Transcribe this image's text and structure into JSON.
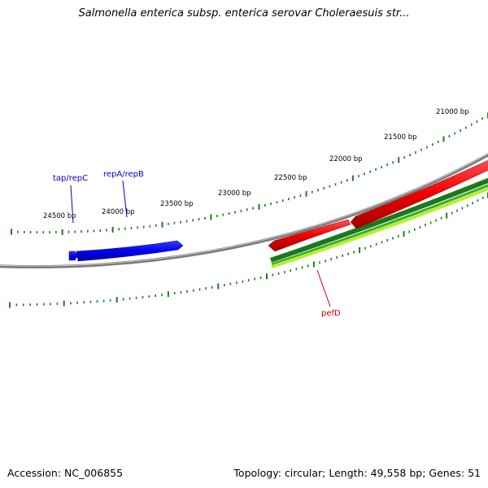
{
  "title": "Salmonella enterica subsp. enterica serovar Choleraesuis str...",
  "footer": {
    "accession": "Accession: NC_006855",
    "summary": "Topology: circular; Length: 49,558 bp; Genes: 51"
  },
  "ruler": {
    "labels": [
      "21000 bp",
      "21500 bp",
      "22000 bp",
      "22500 bp",
      "23000 bp",
      "23500 bp",
      "24000 bp",
      "24500 bp"
    ]
  },
  "genes": [
    {
      "name": "tap/repC",
      "color": "#0000cc"
    },
    {
      "name": "repA/repB",
      "color": "#0000cc"
    },
    {
      "name": "pefD",
      "color": "#cc0000"
    }
  ],
  "colors": {
    "backbone": "#8a8a8a",
    "ticks": "#1e7d1e",
    "forward_gene": "#0000ee",
    "reverse_gene": "#ee0000",
    "gc_track_dark": "#1f8a1f",
    "gc_track_light": "#b5f02c"
  }
}
